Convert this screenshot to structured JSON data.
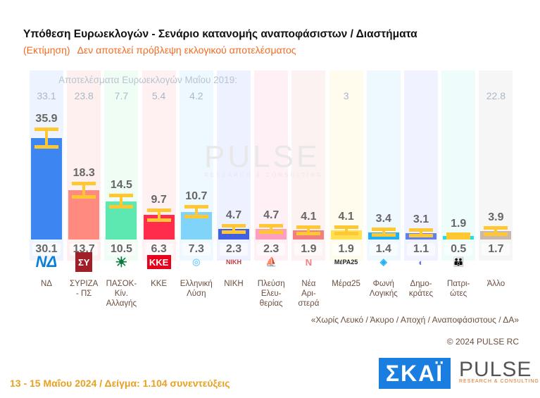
{
  "header": {
    "title": "Υπόθεση Ευρωεκλογών - Σενάριο κατανομής αναποφάσιστων / Διαστήματα",
    "subtitle_a": "(Εκτίμηση)",
    "subtitle_b": "Δεν αποτελεί πρόβλεψη εκλογικού αποτελέσματος"
  },
  "chart_data": {
    "type": "bar",
    "description_label": "Αποτελέσματα Ευρωεκλογών Μαΐου 2019:",
    "categories": [
      "ΝΔ",
      "ΣΥΡΙΖΑ - ΠΣ",
      "ΠΑΣΟΚ-Κίν. Αλλαγής",
      "ΚΚΕ",
      "Ελληνική Λύση",
      "ΝΙΚΗ",
      "Πλεύση Ελευ-θερίας",
      "Νέα Αρι-στερά",
      "Μέρα25",
      "Φωνή Λογικής",
      "Δημο-κράτες",
      "Πατρι-ώτες",
      "Άλλο"
    ],
    "name_lines": [
      [
        "ΝΔ"
      ],
      [
        "ΣΥΡΙΖΑ",
        "- ΠΣ"
      ],
      [
        "ΠΑΣΟΚ-Κίν.",
        "Αλλαγής"
      ],
      [
        "ΚΚΕ"
      ],
      [
        "Ελληνική",
        "Λύση"
      ],
      [
        "ΝΙΚΗ"
      ],
      [
        "Πλεύση",
        "Ελευ-",
        "θερίας"
      ],
      [
        "Νέα",
        "Αρι-",
        "στερά"
      ],
      [
        "Μέρα25"
      ],
      [
        "Φωνή",
        "Λογικής"
      ],
      [
        "Δημο-",
        "κράτες"
      ],
      [
        "Πατρι-",
        "ώτες"
      ],
      [
        "Άλλο"
      ]
    ],
    "upper": [
      35.9,
      18.3,
      14.5,
      9.7,
      10.7,
      4.7,
      4.7,
      4.1,
      4.1,
      3.4,
      3.1,
      1.9,
      3.9
    ],
    "lower": [
      30.1,
      13.7,
      10.5,
      6.3,
      7.3,
      2.3,
      2.3,
      1.9,
      1.9,
      1.4,
      1.1,
      0.5,
      1.7
    ],
    "results_2019": [
      "33.1",
      "23.8",
      "7.7",
      "5.4",
      "4.2",
      "",
      "",
      "",
      "3",
      "",
      "",
      "",
      "22.8"
    ],
    "colors": [
      "#3d85f0",
      "#ff8a80",
      "#5ce8b0",
      "#ff2d4b",
      "#80d4fa",
      "#4060e0",
      "#ff9fbf",
      "#f08080",
      "#ffe050",
      "#20b0f0",
      "#6080f0",
      "#20e0e0",
      "#c8b8b0"
    ],
    "band_colors": [
      "#eef4ff",
      "#fff0f0",
      "#effdf5",
      "#fff0f2",
      "#eef8ff",
      "#eef1ff",
      "#fff0f5",
      "#fdf2f2",
      "#fffcee",
      "#eef8ff",
      "#f0f2ff",
      "#eefcfc",
      "#f6f6f6"
    ],
    "logos": [
      "ΝΔ",
      "ΣΥ",
      "☀",
      "ΚΚΕ",
      "◎",
      "ΝΙΚΗ",
      "⛵",
      "Ν",
      "ΜέΡΑ25",
      "◈",
      "◐",
      "👪",
      ""
    ],
    "interval_color": "#ffc832"
  },
  "footer": {
    "note": "«Χωρίς Λευκό / Άκυρο / Αποχή / Αναποφάσιστους / ΔΑ»",
    "copyright": "© 2024 PULSE RC",
    "dates": "13 - 15  Μαΐου 2024  /  Δείγμα:  1.104 συνεντεύξεις",
    "skai": "ΣΚΑΪ",
    "pulse": "PULSE",
    "pulse_sub": "RESEARCH & CONSULTING"
  }
}
